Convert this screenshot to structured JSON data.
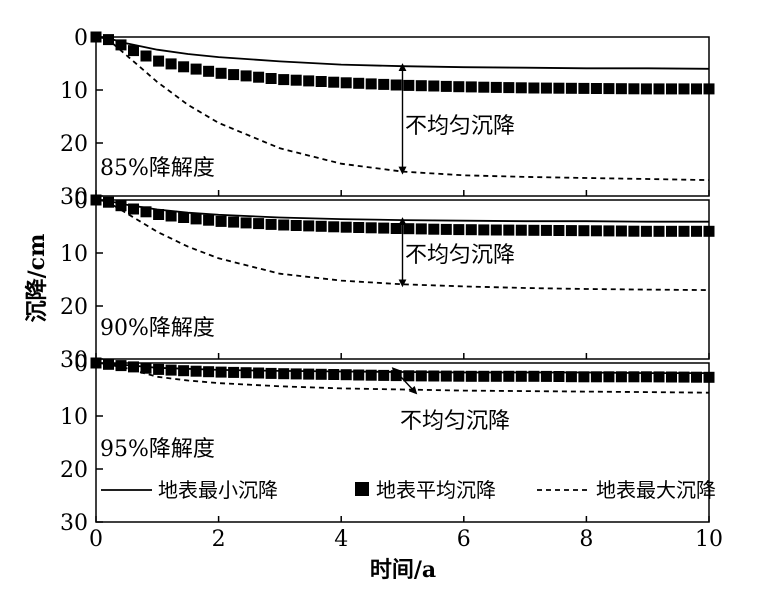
{
  "chart_data": {
    "type": "line",
    "xlabel": "时间/a",
    "ylabel": "沉降/cm",
    "xlim": [
      0,
      10
    ],
    "xticks": [
      "0",
      "2",
      "4",
      "6",
      "8",
      "10"
    ],
    "ylim": [
      0,
      30
    ],
    "yticks": [
      "0",
      "10",
      "20",
      "30"
    ],
    "y_inverted": true,
    "grid": false,
    "legend": {
      "placement": "bottom",
      "entries": [
        {
          "name": "地表最小沉降",
          "style": "solid"
        },
        {
          "name": "地表平均沉降",
          "style": "square-markers"
        },
        {
          "name": "地表最大沉降",
          "style": "dashed"
        }
      ]
    },
    "panels": [
      {
        "label": "85%降解度",
        "annotation": "不均匀沉降",
        "arrow_x": 5,
        "series": [
          {
            "name": "地表最小沉降",
            "x": [
              0,
              0.25,
              0.5,
              1,
              1.5,
              2,
              3,
              4,
              5,
              6,
              7,
              8,
              9,
              10
            ],
            "y": [
              0,
              0.4,
              1.2,
              2.4,
              3.2,
              3.8,
              4.6,
              5.2,
              5.5,
              5.7,
              5.8,
              5.9,
              5.9,
              6.0
            ]
          },
          {
            "name": "地表平均沉降",
            "x": [
              0,
              0.25,
              0.5,
              1,
              1.5,
              2,
              3,
              4,
              5,
              6,
              7,
              8,
              9,
              10
            ],
            "y": [
              0,
              0.6,
              2.0,
              4.5,
              5.8,
              6.8,
              8.0,
              8.6,
              9.1,
              9.4,
              9.6,
              9.7,
              9.8,
              9.8
            ]
          },
          {
            "name": "地表最大沉降",
            "x": [
              0,
              0.25,
              0.5,
              1,
              1.5,
              2,
              3,
              4,
              5,
              6,
              7,
              8,
              9,
              10
            ],
            "y": [
              0,
              1.0,
              3.5,
              8.5,
              12.8,
              16.2,
              21.0,
              23.9,
              25.4,
              26.1,
              26.4,
              26.6,
              26.8,
              27.0
            ]
          }
        ]
      },
      {
        "label": "90%降解度",
        "annotation": "不均匀沉降",
        "arrow_x": 5,
        "series": [
          {
            "name": "地表最小沉降",
            "x": [
              0,
              0.25,
              0.5,
              1,
              1.5,
              2,
              3,
              4,
              5,
              6,
              7,
              8,
              9,
              10
            ],
            "y": [
              0,
              0.3,
              0.9,
              1.8,
              2.4,
              2.8,
              3.3,
              3.6,
              3.8,
              3.9,
              4.0,
              4.0,
              4.1,
              4.1
            ]
          },
          {
            "name": "地表平均沉降",
            "x": [
              0,
              0.25,
              0.5,
              1,
              1.5,
              2,
              3,
              4,
              5,
              6,
              7,
              8,
              9,
              10
            ],
            "y": [
              0,
              0.5,
              1.4,
              2.7,
              3.4,
              4.0,
              4.7,
              5.1,
              5.4,
              5.6,
              5.7,
              5.8,
              5.9,
              5.9
            ]
          },
          {
            "name": "地表最大沉降",
            "x": [
              0,
              0.25,
              0.5,
              1,
              1.5,
              2,
              3,
              4,
              5,
              6,
              7,
              8,
              9,
              10
            ],
            "y": [
              0,
              0.8,
              2.5,
              6.0,
              8.8,
              11.0,
              13.9,
              15.2,
              15.9,
              16.3,
              16.6,
              16.8,
              16.9,
              17.0
            ]
          }
        ]
      },
      {
        "label": "95%降解度",
        "annotation": "不均匀沉降",
        "arrow_x": 5,
        "series": [
          {
            "name": "地表最小沉降",
            "x": [
              0,
              0.25,
              0.5,
              1,
              1.5,
              2,
              3,
              4,
              5,
              6,
              7,
              8,
              9,
              10
            ],
            "y": [
              0,
              0.2,
              0.4,
              0.9,
              1.1,
              1.3,
              1.5,
              1.6,
              1.7,
              1.8,
              1.8,
              1.8,
              1.9,
              1.9
            ]
          },
          {
            "name": "地表平均沉降",
            "x": [
              0,
              0.25,
              0.5,
              1,
              1.5,
              2,
              3,
              4,
              5,
              6,
              7,
              8,
              9,
              10
            ],
            "y": [
              0,
              0.3,
              0.6,
              1.2,
              1.5,
              1.7,
              2.0,
              2.2,
              2.4,
              2.5,
              2.5,
              2.6,
              2.6,
              2.7
            ]
          },
          {
            "name": "地表最大沉降",
            "x": [
              0,
              0.25,
              0.5,
              1,
              1.5,
              2,
              3,
              4,
              5,
              6,
              7,
              8,
              9,
              10
            ],
            "y": [
              0,
              0.4,
              1.0,
              2.6,
              3.3,
              3.8,
              4.4,
              4.8,
              5.0,
              5.2,
              5.3,
              5.4,
              5.5,
              5.6
            ]
          }
        ]
      }
    ]
  }
}
